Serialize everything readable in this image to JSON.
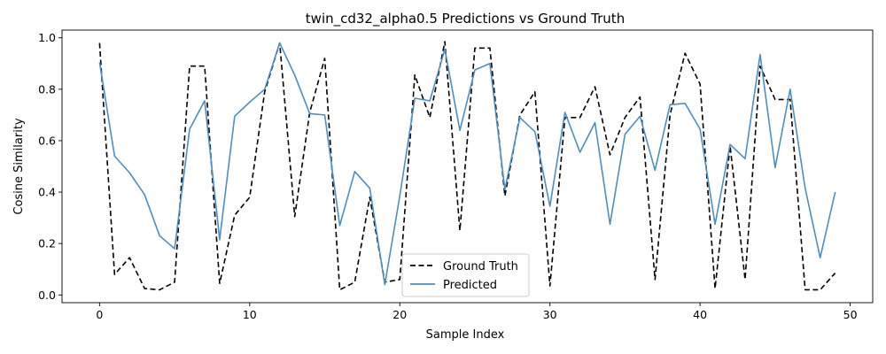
{
  "chart_data": {
    "type": "line",
    "title": "twin_cd32_alpha0.5 Predictions vs Ground Truth",
    "xlabel": "Sample Index",
    "ylabel": "Cosine Similarity",
    "xlim": [
      -2.5,
      51.5
    ],
    "ylim": [
      -0.03,
      1.03
    ],
    "xticks": [
      0,
      10,
      20,
      30,
      40,
      50
    ],
    "xtick_labels": [
      "0",
      "10",
      "20",
      "30",
      "40",
      "50"
    ],
    "yticks": [
      0.0,
      0.2,
      0.4,
      0.6,
      0.8,
      1.0
    ],
    "ytick_labels": [
      "0.0",
      "0.2",
      "0.4",
      "0.6",
      "0.8",
      "1.0"
    ],
    "grid": false,
    "legend_position": "bottom-center",
    "x": [
      0,
      1,
      2,
      3,
      4,
      5,
      6,
      7,
      8,
      9,
      10,
      11,
      12,
      13,
      14,
      15,
      16,
      17,
      18,
      19,
      20,
      21,
      22,
      23,
      24,
      25,
      26,
      27,
      28,
      29,
      30,
      31,
      32,
      33,
      34,
      35,
      36,
      37,
      38,
      39,
      40,
      41,
      42,
      43,
      44,
      45,
      46,
      47,
      48,
      49
    ],
    "series": [
      {
        "name": "Ground Truth",
        "color": "#000000",
        "dashed": true,
        "values": [
          0.98,
          0.08,
          0.145,
          0.025,
          0.02,
          0.05,
          0.89,
          0.89,
          0.045,
          0.31,
          0.38,
          0.79,
          0.98,
          0.305,
          0.71,
          0.92,
          0.02,
          0.05,
          0.38,
          0.05,
          0.06,
          0.855,
          0.69,
          0.985,
          0.25,
          0.96,
          0.96,
          0.385,
          0.7,
          0.79,
          0.035,
          0.69,
          0.69,
          0.81,
          0.545,
          0.69,
          0.77,
          0.06,
          0.7,
          0.94,
          0.82,
          0.025,
          0.58,
          0.06,
          0.89,
          0.76,
          0.76,
          0.02,
          0.02,
          0.085
        ]
      },
      {
        "name": "Predicted",
        "color": "#4c8fc3",
        "dashed": false,
        "values": [
          0.905,
          0.54,
          0.475,
          0.39,
          0.23,
          0.18,
          0.645,
          0.755,
          0.215,
          0.695,
          0.75,
          0.8,
          0.98,
          0.855,
          0.705,
          0.7,
          0.27,
          0.48,
          0.415,
          0.04,
          0.385,
          0.765,
          0.755,
          0.955,
          0.64,
          0.875,
          0.9,
          0.41,
          0.69,
          0.635,
          0.345,
          0.71,
          0.555,
          0.67,
          0.275,
          0.625,
          0.695,
          0.485,
          0.74,
          0.745,
          0.645,
          0.275,
          0.585,
          0.53,
          0.935,
          0.495,
          0.8,
          0.415,
          0.145,
          0.4
        ]
      }
    ]
  }
}
